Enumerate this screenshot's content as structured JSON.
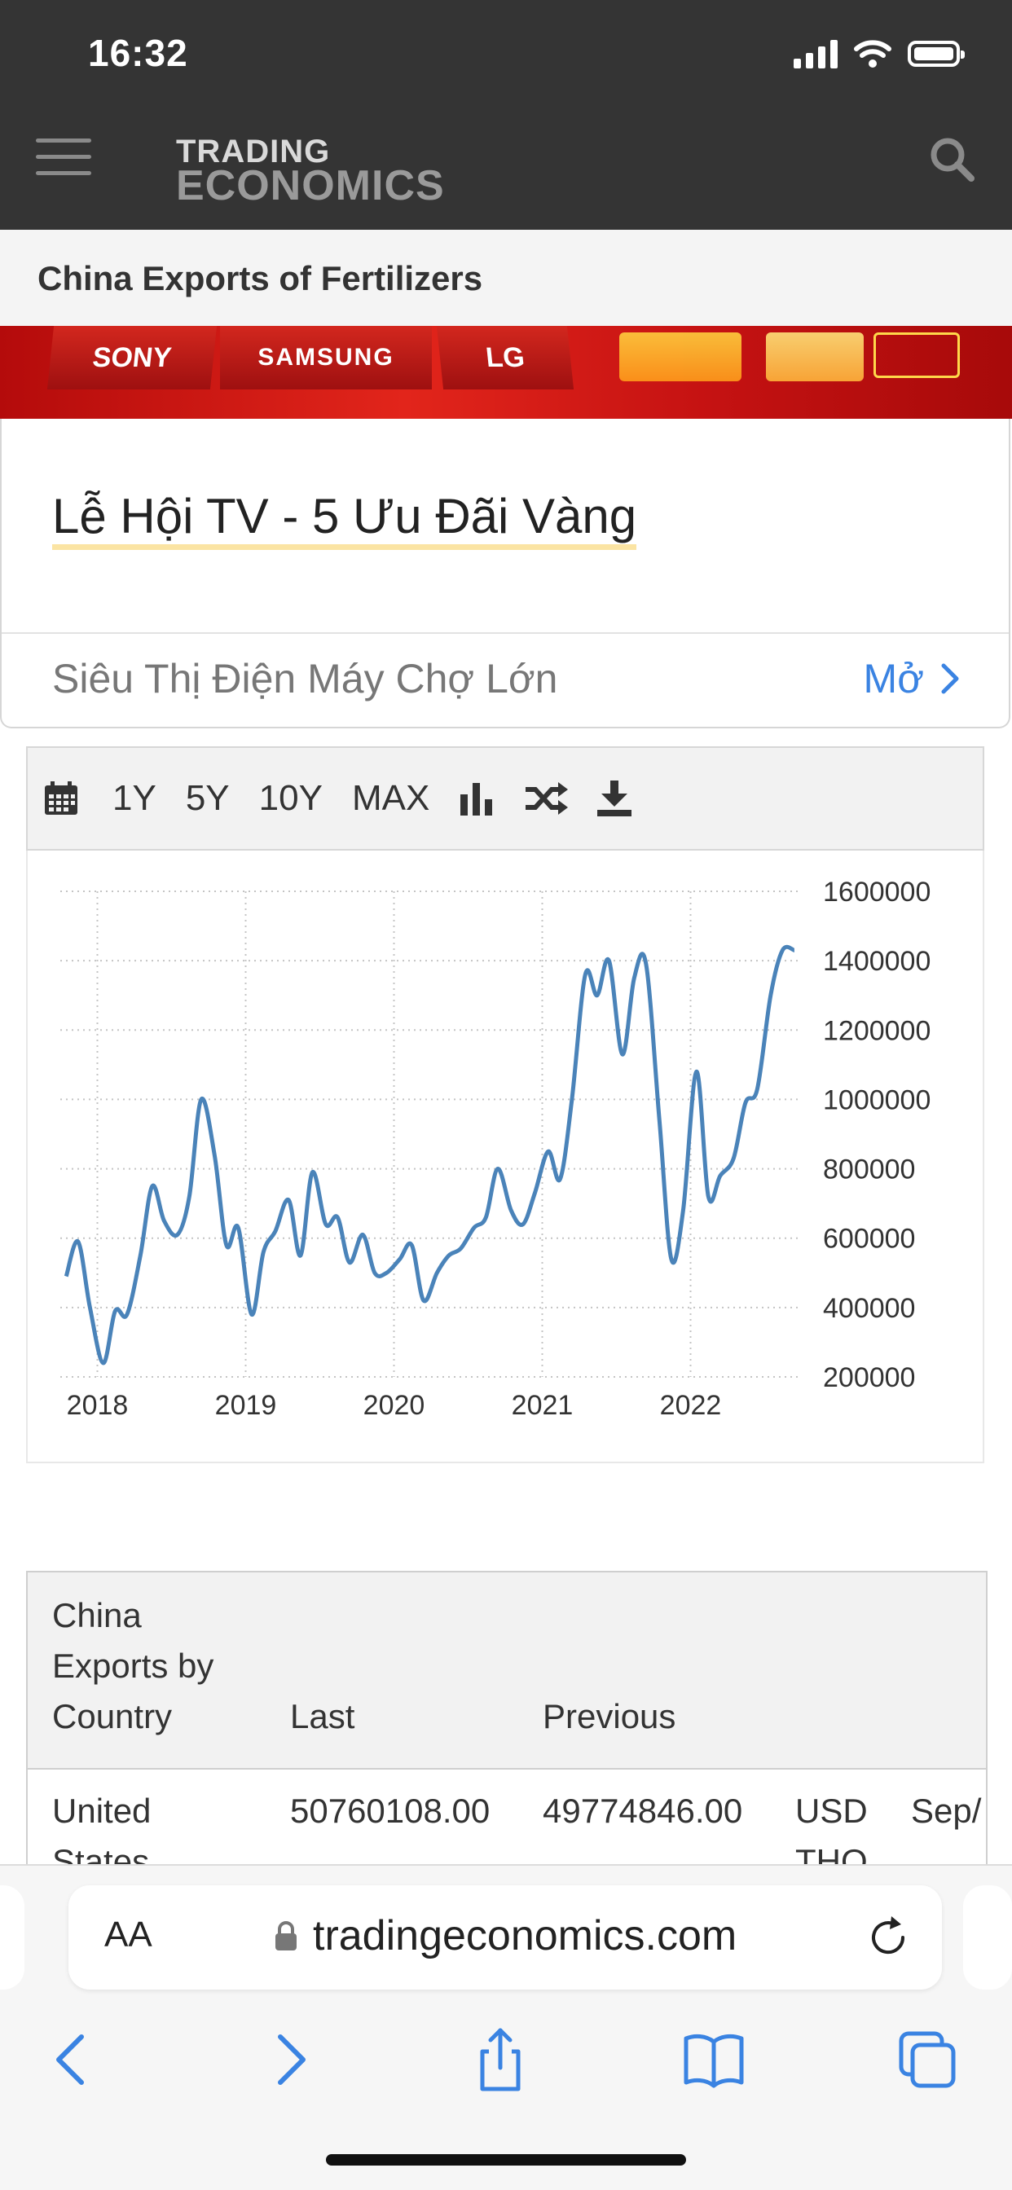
{
  "status_bar": {
    "time": "16:32"
  },
  "header": {
    "brand_line1": "TRADING",
    "brand_line2": "ECONOMICS"
  },
  "page_title": "China Exports of Fertilizers",
  "ad": {
    "banner_brands": [
      "SONY",
      "SAMSUNG",
      "LG"
    ],
    "title": "Lễ Hội TV - 5 Ưu Đãi Vàng",
    "advertiser": "Siêu Thị Điện Máy Chợ Lớn",
    "open_label": "Mở"
  },
  "chart_toolbar": {
    "ranges": [
      "1Y",
      "5Y",
      "10Y",
      "MAX"
    ]
  },
  "chart_data": {
    "type": "line",
    "x_labels": [
      "2018",
      "2019",
      "2020",
      "2021",
      "2022"
    ],
    "y_ticks": [
      "1600000",
      "1400000",
      "1200000",
      "1000000",
      "800000",
      "600000",
      "400000",
      "200000"
    ],
    "ylim": [
      200000,
      1600000
    ],
    "xlim": [
      2017.75,
      2022.75
    ],
    "grid": true,
    "color": "#4a83b9",
    "x": [
      2017.79,
      2017.87,
      2017.95,
      2018.04,
      2018.12,
      2018.2,
      2018.29,
      2018.37,
      2018.45,
      2018.54,
      2018.62,
      2018.7,
      2018.79,
      2018.87,
      2018.95,
      2019.04,
      2019.12,
      2019.2,
      2019.29,
      2019.37,
      2019.45,
      2019.54,
      2019.62,
      2019.7,
      2019.79,
      2019.87,
      2019.95,
      2020.04,
      2020.12,
      2020.2,
      2020.29,
      2020.37,
      2020.45,
      2020.54,
      2020.62,
      2020.7,
      2020.79,
      2020.87,
      2020.95,
      2021.04,
      2021.12,
      2021.2,
      2021.29,
      2021.37,
      2021.45,
      2021.54,
      2021.62,
      2021.7,
      2021.79,
      2021.87,
      2021.95,
      2022.04,
      2022.12,
      2022.2,
      2022.29,
      2022.37,
      2022.45,
      2022.54,
      2022.62,
      2022.7
    ],
    "values": [
      490000,
      590000,
      400000,
      240000,
      390000,
      380000,
      550000,
      750000,
      650000,
      610000,
      720000,
      1000000,
      840000,
      580000,
      630000,
      380000,
      560000,
      620000,
      710000,
      550000,
      790000,
      640000,
      660000,
      530000,
      610000,
      500000,
      500000,
      540000,
      580000,
      420000,
      500000,
      550000,
      570000,
      630000,
      660000,
      800000,
      680000,
      640000,
      730000,
      850000,
      770000,
      1000000,
      1360000,
      1300000,
      1400000,
      1130000,
      1350000,
      1390000,
      940000,
      540000,
      680000,
      1080000,
      720000,
      780000,
      830000,
      990000,
      1030000,
      1300000,
      1430000,
      1430000
    ]
  },
  "table": {
    "headers": [
      "China Exports by Country",
      "Last",
      "Previous"
    ],
    "rows": [
      {
        "country": "United States",
        "last": "50760108.00",
        "previous": "49774846.00",
        "unit": "USD THO",
        "date": "Sep/"
      }
    ]
  },
  "browser": {
    "text_size_label": "AA",
    "url": "tradingeconomics.com"
  }
}
